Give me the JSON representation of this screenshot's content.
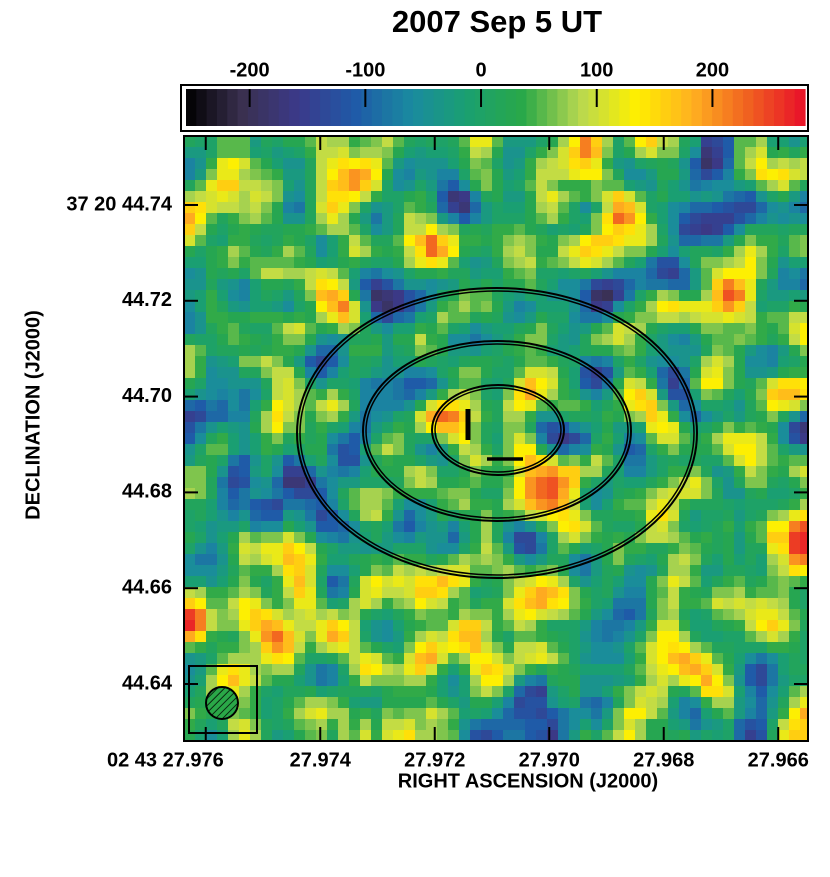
{
  "chart_data": {
    "type": "image",
    "title": "2007 Sep 5 UT",
    "xlabel": "RIGHT ASCENSION (J2000)",
    "ylabel": "DECLINATION (J2000)",
    "xlim": [
      27.97638,
      27.96548
    ],
    "xticks": [
      {
        "value": 27.976,
        "label": "02 43 27.976"
      },
      27.974,
      27.972,
      {
        "value": 27.97,
        "label": "27.970"
      },
      27.968,
      27.966
    ],
    "ylim": [
      44.6281,
      44.7544
    ],
    "yticks": [
      {
        "value": 44.74,
        "label": "37 20 44.74"
      },
      44.72,
      {
        "value": 44.7,
        "label": "44.70"
      },
      44.68,
      44.66,
      44.64
    ],
    "colorbar": {
      "lim": [
        -255,
        280
      ],
      "ticks": [
        -200,
        -100,
        0,
        100,
        200
      ],
      "colormap": [
        "#000000",
        "#3a3050",
        "#3b3a8a",
        "#1f5aa8",
        "#1a8aa0",
        "#1aa070",
        "#2aa848",
        "#b8d850",
        "#fff000",
        "#ffb020",
        "#f06020",
        "#e8102a"
      ]
    }
  }
}
